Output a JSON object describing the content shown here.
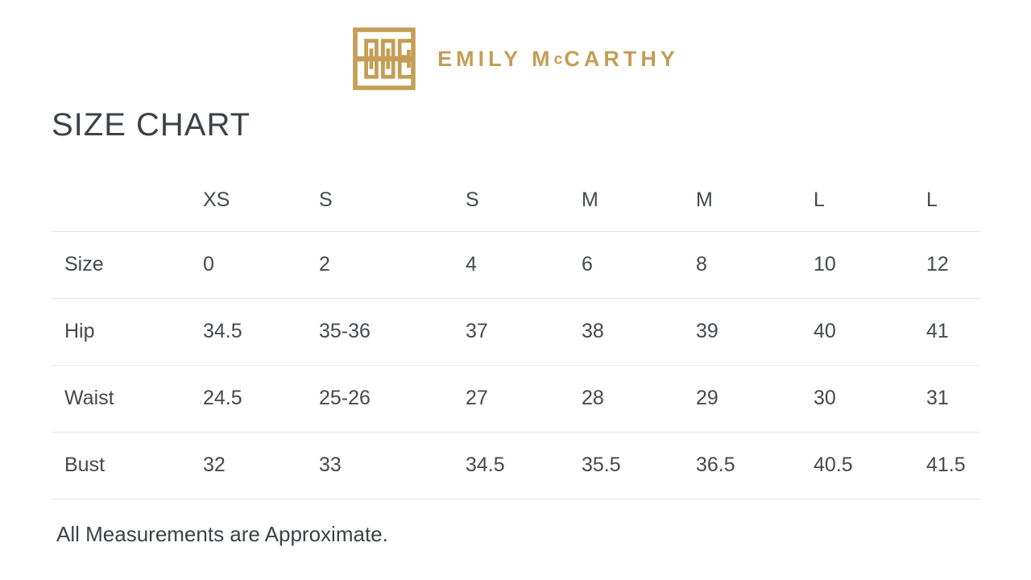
{
  "brand": {
    "name": "EMILY McCARTHY",
    "name_prefix": "EMILY M",
    "name_small": "c",
    "name_suffix": "CARTHY",
    "logo_icon": "greek-key-monogram-icon"
  },
  "title": "SIZE CHART",
  "table": {
    "columns": [
      "",
      "XS",
      "S",
      "S",
      "M",
      "M",
      "L",
      "L"
    ],
    "rows": [
      {
        "label": "Size",
        "values": [
          "0",
          "2",
          "4",
          "6",
          "8",
          "10",
          "12"
        ]
      },
      {
        "label": "Hip",
        "values": [
          "34.5",
          "35-36",
          "37",
          "38",
          "39",
          "40",
          "41"
        ]
      },
      {
        "label": "Waist",
        "values": [
          "24.5",
          "25-26",
          "27",
          "28",
          "29",
          "30",
          "31"
        ]
      },
      {
        "label": "Bust",
        "values": [
          "32",
          "33",
          "34.5",
          "35.5",
          "36.5",
          "40.5",
          "41.5"
        ]
      }
    ]
  },
  "note": "All Measurements are Approximate.",
  "colors": {
    "gold": "#c49e56",
    "text": "#45494e",
    "heading": "#3d4247",
    "divider": "#e5e5e6",
    "background": "#ffffff"
  }
}
